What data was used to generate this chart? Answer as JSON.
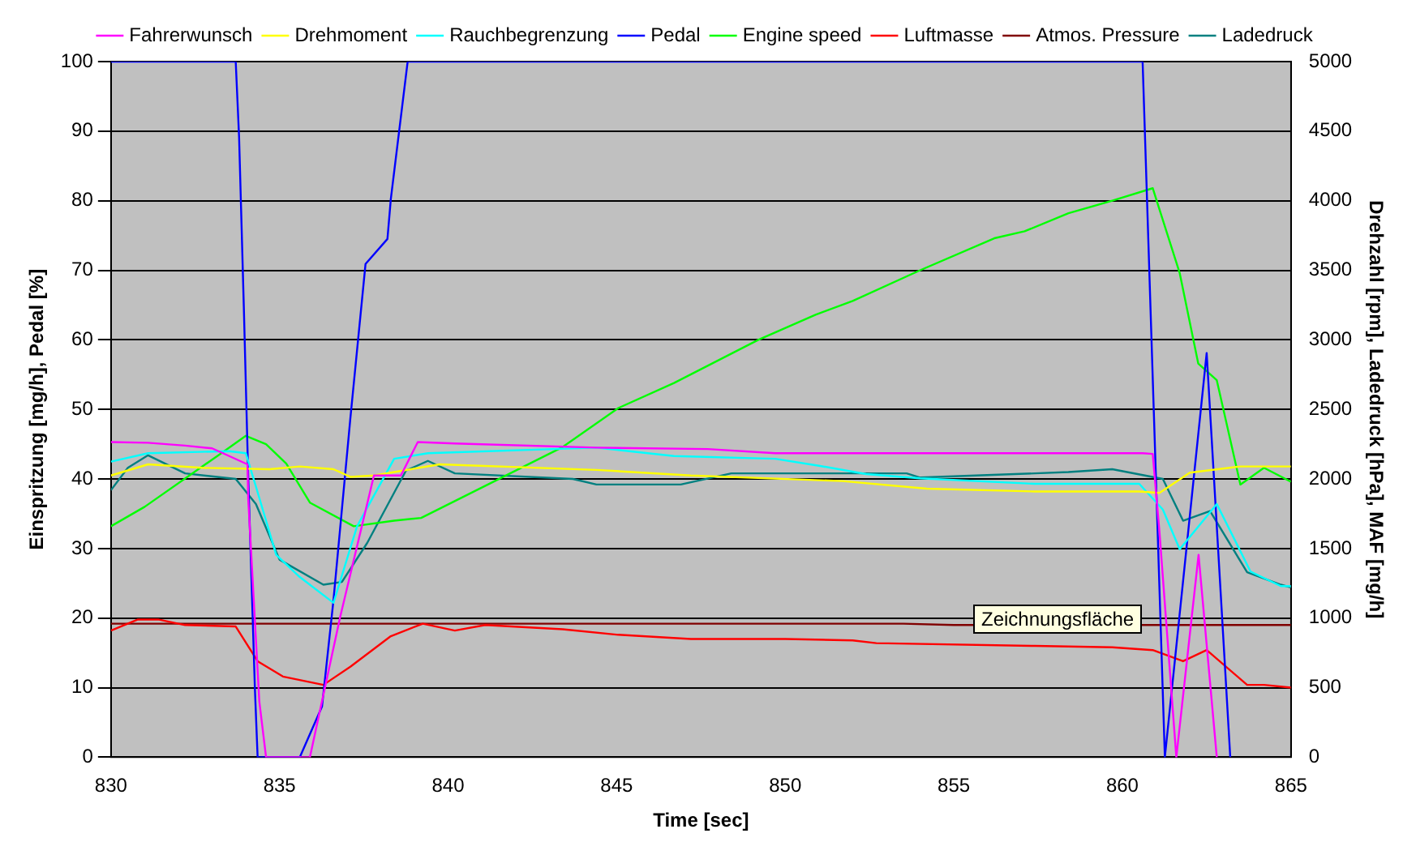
{
  "chart_data": {
    "type": "line",
    "xlabel": "Time [sec]",
    "ylabel": "Einspritzung [mg/h], Pedal [%]",
    "y2label": "Drehzahl [rpm], Ladedruck [hPa], MAF [mg/h]",
    "annotations": [
      "Zeichnungsfläche"
    ],
    "xlim": [
      830,
      865
    ],
    "xticks": [
      830,
      835,
      840,
      845,
      850,
      855,
      860,
      865
    ],
    "ylim": [
      0,
      100
    ],
    "yticks": [
      0,
      10,
      20,
      30,
      40,
      50,
      60,
      70,
      80,
      90,
      100
    ],
    "y2lim": [
      0,
      5000
    ],
    "y2ticks": [
      0,
      500,
      1000,
      1500,
      2000,
      2500,
      3000,
      3500,
      4000,
      4500,
      5000
    ],
    "grid": "y",
    "legend": "top",
    "marker": "none",
    "line_style": "solid",
    "series": [
      {
        "name": "Fahrerwunsch",
        "color": "#ff00ff",
        "x": [
          830,
          831.1,
          832.2,
          833,
          834.05,
          834.07,
          834.4,
          834.6,
          835.9,
          836.8,
          837.8,
          838.6,
          839.1,
          840.2,
          844.4,
          847.7,
          849.7,
          860.6,
          860.9,
          861.1,
          861.6,
          862.26,
          862.8
        ],
        "values": [
          45.3,
          45.2,
          44.8,
          44.4,
          42.1,
          37.2,
          8,
          0,
          0,
          20.2,
          40.5,
          40.5,
          45.3,
          45.1,
          44.5,
          44.3,
          43.7,
          43.7,
          43.6,
          32.4,
          0,
          29.1,
          0
        ]
      },
      {
        "name": "Drehmoment",
        "color": "#ffff00",
        "x": [
          830,
          831.1,
          832.7,
          834.7,
          835.6,
          836.6,
          837.1,
          837.8,
          839.75,
          844.4,
          847.2,
          851.7,
          854.2,
          857.4,
          860.5,
          861.1,
          862,
          863.5,
          865
        ],
        "values": [
          40.5,
          42.1,
          41.6,
          41.4,
          41.8,
          41.4,
          40.3,
          40.5,
          42.1,
          41.3,
          40.5,
          39.7,
          38.6,
          38.2,
          38.2,
          38,
          40.9,
          41.8,
          41.8
        ]
      },
      {
        "name": "Rauchbegrenzung",
        "color": "#00ffff",
        "x": [
          830,
          831.1,
          833.5,
          834,
          834.3,
          834.9,
          835.6,
          836.6,
          837.3,
          838.4,
          839.4,
          844.4,
          846.7,
          849.7,
          851,
          852.4,
          854,
          857.4,
          860.5,
          861.2,
          861.7,
          862.8,
          863.8,
          864.7,
          865
        ],
        "values": [
          42.5,
          43.7,
          44,
          43.7,
          38.9,
          29.1,
          25.9,
          22.2,
          33.2,
          42.9,
          43.7,
          44.5,
          43.3,
          42.9,
          41.9,
          40.7,
          40.1,
          39.3,
          39.3,
          35.6,
          29.9,
          36.4,
          26.7,
          24.6,
          24.6
        ]
      },
      {
        "name": "Pedal",
        "color": "#0000ff",
        "x": [
          830,
          833.7,
          833.8,
          833.94,
          834.07,
          834.27,
          834.35,
          835.6,
          836.26,
          836.6,
          837.1,
          837.55,
          838.2,
          838.3,
          838.8,
          860.6,
          861.26,
          862.5,
          863.2
        ],
        "values": [
          100,
          100,
          89.1,
          64.8,
          40.5,
          9.7,
          0,
          0,
          7.3,
          22.6,
          48.7,
          70.9,
          74.5,
          80.2,
          100,
          100,
          0,
          58.1,
          0
        ]
      },
      {
        "name": "Engine speed",
        "color": "#00ff00",
        "axis": "y2",
        "x": [
          830,
          831,
          833.3,
          834,
          834.6,
          835.2,
          835.9,
          837.2,
          838.4,
          839.2,
          843.4,
          845.05,
          846.7,
          849.2,
          850.9,
          852,
          854,
          856.2,
          857.1,
          858.4,
          859.7,
          860.9,
          861.7,
          862.25,
          862.8,
          863.5,
          864.2,
          865
        ],
        "values": [
          1660,
          1800,
          2190,
          2310,
          2250,
          2110,
          1830,
          1660,
          1700,
          1720,
          2230,
          2510,
          2690,
          3000,
          3180,
          3280,
          3500,
          3730,
          3780,
          3910,
          4000,
          4090,
          3480,
          2830,
          2710,
          1960,
          2080,
          1980
        ]
      },
      {
        "name": "Luftmasse",
        "color": "#ff0000",
        "axis": "y2",
        "x": [
          830,
          830.8,
          831.4,
          832.2,
          833.7,
          834.35,
          835.1,
          836.3,
          837.1,
          838.3,
          839.25,
          840.2,
          841.1,
          843.4,
          845.05,
          847.2,
          850,
          852,
          852.7,
          857.4,
          859.7,
          860.9,
          861.8,
          862.5,
          863.7,
          864.2,
          865
        ],
        "values": [
          910,
          990,
          990,
          950,
          940,
          690,
          580,
          520,
          650,
          870,
          960,
          910,
          950,
          920,
          880,
          850,
          850,
          840,
          820,
          800,
          790,
          770,
          690,
          770,
          520,
          520,
          500
        ]
      },
      {
        "name": "Atmos. Pressure",
        "color": "#800000",
        "axis": "y2",
        "x": [
          830,
          853.5,
          855,
          865
        ],
        "values": [
          960,
          960,
          950,
          950
        ]
      },
      {
        "name": "Ladedruck",
        "color": "#008080",
        "axis": "y2",
        "x": [
          830,
          830.5,
          831.1,
          832.2,
          833.7,
          834.3,
          835,
          836.3,
          836.85,
          837.6,
          838.75,
          839.4,
          840.2,
          843.7,
          844.4,
          846.9,
          848.4,
          853.6,
          854,
          857.4,
          858.4,
          859.7,
          861.2,
          861.8,
          862.6,
          863.7,
          864.7,
          865
        ],
        "values": [
          1920,
          2080,
          2170,
          2040,
          2000,
          1820,
          1420,
          1240,
          1260,
          1540,
          2060,
          2130,
          2040,
          2000,
          1960,
          1960,
          2040,
          2040,
          2010,
          2040,
          2050,
          2070,
          2000,
          1700,
          1770,
          1330,
          1240,
          1220
        ]
      }
    ]
  }
}
